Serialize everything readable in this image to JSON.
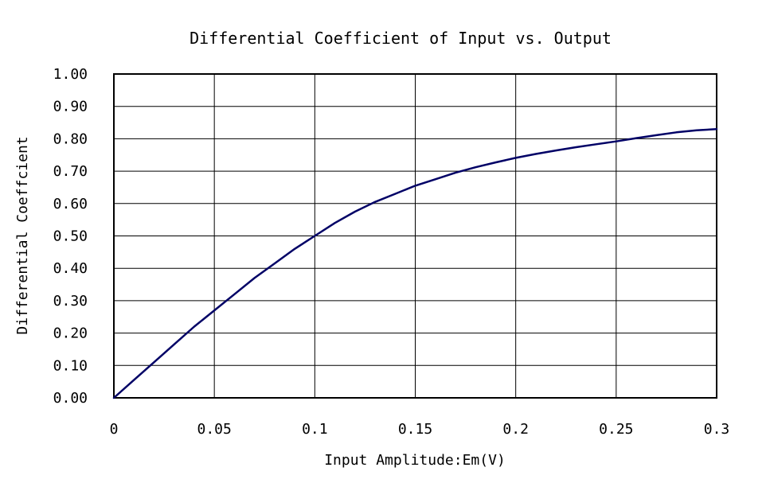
{
  "chart_data": {
    "type": "line",
    "title": "Differential Coefficient of Input vs. Output",
    "xlabel": "Input Amplitude:Em(V)",
    "ylabel": "Differential Coeffcient",
    "xlim": [
      0,
      0.3
    ],
    "ylim": [
      0,
      1.0
    ],
    "x_ticks": [
      0,
      0.05,
      0.1,
      0.15,
      0.2,
      0.25,
      0.3
    ],
    "x_tick_labels": [
      "0",
      "0.05",
      "0.1",
      "0.15",
      "0.2",
      "0.25",
      "0.3"
    ],
    "y_ticks": [
      0,
      0.1,
      0.2,
      0.3,
      0.4,
      0.5,
      0.6,
      0.7,
      0.8,
      0.9,
      1.0
    ],
    "y_tick_labels": [
      "0.00",
      "0.10",
      "0.20",
      "0.30",
      "0.40",
      "0.50",
      "0.60",
      "0.70",
      "0.80",
      "0.90",
      "1.00"
    ],
    "grid": true,
    "legend": "none",
    "line_color": "#000066",
    "series": [
      {
        "x": [
          0.0,
          0.01,
          0.02,
          0.03,
          0.04,
          0.05,
          0.06,
          0.07,
          0.08,
          0.09,
          0.1,
          0.11,
          0.12,
          0.13,
          0.14,
          0.15,
          0.16,
          0.17,
          0.18,
          0.19,
          0.2,
          0.21,
          0.22,
          0.23,
          0.24,
          0.25,
          0.26,
          0.27,
          0.28,
          0.29,
          0.3
        ],
        "y": [
          0.0,
          0.055,
          0.11,
          0.165,
          0.22,
          0.27,
          0.32,
          0.37,
          0.415,
          0.46,
          0.5,
          0.54,
          0.575,
          0.605,
          0.63,
          0.655,
          0.675,
          0.695,
          0.712,
          0.727,
          0.741,
          0.753,
          0.764,
          0.774,
          0.783,
          0.792,
          0.802,
          0.811,
          0.82,
          0.826,
          0.83
        ]
      }
    ]
  }
}
